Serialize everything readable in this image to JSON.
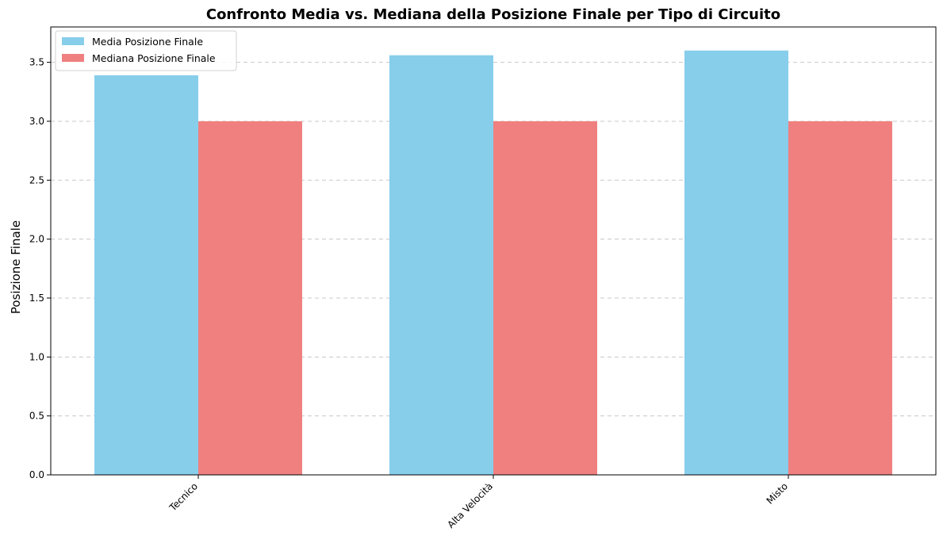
{
  "chart_data": {
    "type": "bar",
    "title": "Confronto Media vs. Mediana della Posizione Finale per Tipo di Circuito",
    "xlabel": "",
    "ylabel": "Posizione Finale",
    "categories": [
      "Tecnico",
      "Alta Velocità",
      "Misto"
    ],
    "series": [
      {
        "name": "Media Posizione Finale",
        "values": [
          3.39,
          3.56,
          3.6
        ],
        "color": "#87ceeb"
      },
      {
        "name": "Mediana Posizione Finale",
        "values": [
          3.0,
          3.0,
          3.0
        ],
        "color": "#f08080"
      }
    ],
    "ylim": [
      0,
      3.8
    ],
    "yticks": [
      "0.0",
      "0.5",
      "1.0",
      "1.5",
      "2.0",
      "2.5",
      "3.0",
      "3.5"
    ],
    "grid": "y-dashed",
    "legend": "top-left"
  }
}
